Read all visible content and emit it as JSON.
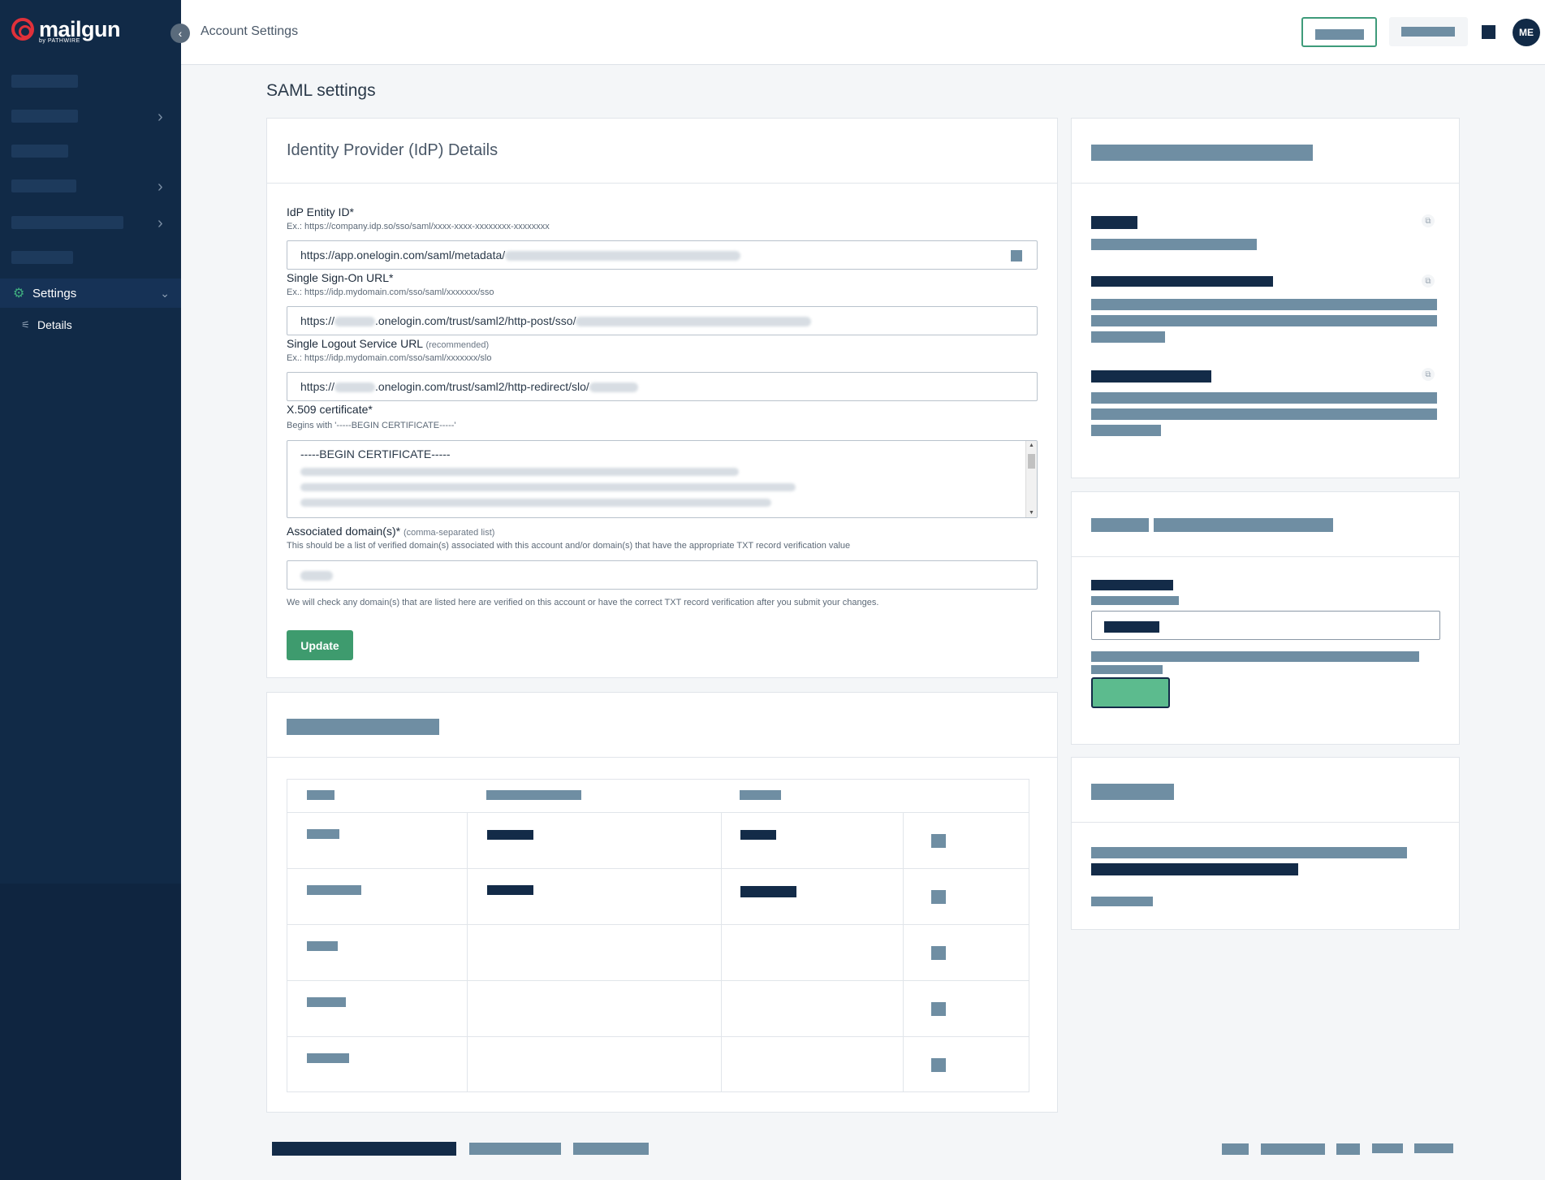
{
  "app": {
    "logo_text": "mailgun",
    "logo_sub": "by PATHWIRE"
  },
  "sidebar": {
    "items": [
      {
        "label": "Settings",
        "icon": "gear-icon",
        "expanded": true
      },
      {
        "label": "Details",
        "icon": "sliders-icon"
      }
    ]
  },
  "header": {
    "breadcrumb": "Account Settings",
    "avatar_initials": "ME"
  },
  "page": {
    "title": "SAML settings"
  },
  "idp": {
    "title": "Identity Provider (IdP) Details",
    "entity_id": {
      "label": "IdP Entity ID*",
      "hint": "Ex.: https://company.idp.so/sso/saml/xxxx-xxxx-xxxxxxxx-xxxxxxxx",
      "value_prefix": "https://app.onelogin.com/saml/metadata/"
    },
    "sso_url": {
      "label": "Single Sign-On URL*",
      "hint": "Ex.: https://idp.mydomain.com/sso/saml/xxxxxxx/sso",
      "value_prefix": "https://",
      "value_middle": ".onelogin.com/trust/saml2/http-post/sso/"
    },
    "slo_url": {
      "label": "Single Logout Service URL",
      "label_note": "(recommended)",
      "hint": "Ex.: https://idp.mydomain.com/sso/saml/xxxxxxx/slo",
      "value_prefix": "https://",
      "value_middle": ".onelogin.com/trust/saml2/http-redirect/slo/"
    },
    "certificate": {
      "label": "X.509 certificate*",
      "hint": "Begins with '-----BEGIN CERTIFICATE-----'",
      "value_first_line": "-----BEGIN CERTIFICATE-----"
    },
    "domains": {
      "label": "Associated domain(s)*",
      "label_note": "(comma-separated list)",
      "hint": "This should be a list of verified domain(s) associated with this account and/or domain(s) that have the appropriate TXT record verification value",
      "footnote": "We will check any domain(s) that are listed here are verified on this account or have the correct TXT record verification after you submit your changes."
    },
    "update_label": "Update"
  },
  "colors": {
    "accent": "#3e9b6e",
    "sidebar": "#112a47",
    "placeholder": "#6f8ea3",
    "placeholder_dark": "#132b48",
    "brand_red": "#e0313a"
  }
}
